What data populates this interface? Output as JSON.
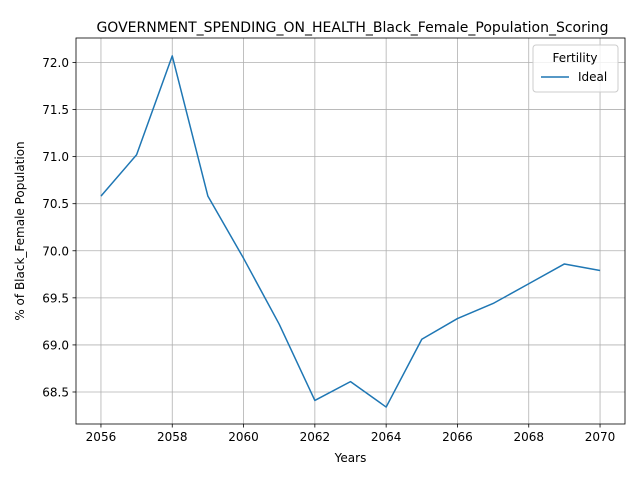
{
  "chart_data": {
    "type": "line",
    "title": "GOVERNMENT_SPENDING_ON_HEALTH_Black_Female_Population_Scoring",
    "xlabel": "Years",
    "ylabel": "% of Black_Female Population",
    "xlim": [
      2055.3,
      2070.7
    ],
    "ylim": [
      68.16,
      72.26
    ],
    "xticks": [
      2056,
      2058,
      2060,
      2062,
      2064,
      2066,
      2068,
      2070
    ],
    "yticks": [
      68.5,
      69.0,
      69.5,
      70.0,
      70.5,
      71.0,
      71.5,
      72.0
    ],
    "ytick_labels": [
      "68.5",
      "69.0",
      "69.5",
      "70.0",
      "70.5",
      "71.0",
      "71.5",
      "72.0"
    ],
    "grid": true,
    "legend": {
      "title": "Fertility",
      "placement": "top-right"
    },
    "x": [
      2056,
      2057,
      2058,
      2059,
      2060,
      2061,
      2062,
      2063,
      2064,
      2065,
      2066,
      2067,
      2068,
      2069,
      2070
    ],
    "series": [
      {
        "name": "Ideal",
        "color": "#1f77b4",
        "values": [
          70.58,
          71.02,
          72.07,
          70.58,
          69.92,
          69.22,
          68.41,
          68.61,
          68.34,
          69.06,
          69.28,
          69.44,
          69.65,
          69.86,
          69.79
        ]
      }
    ]
  }
}
